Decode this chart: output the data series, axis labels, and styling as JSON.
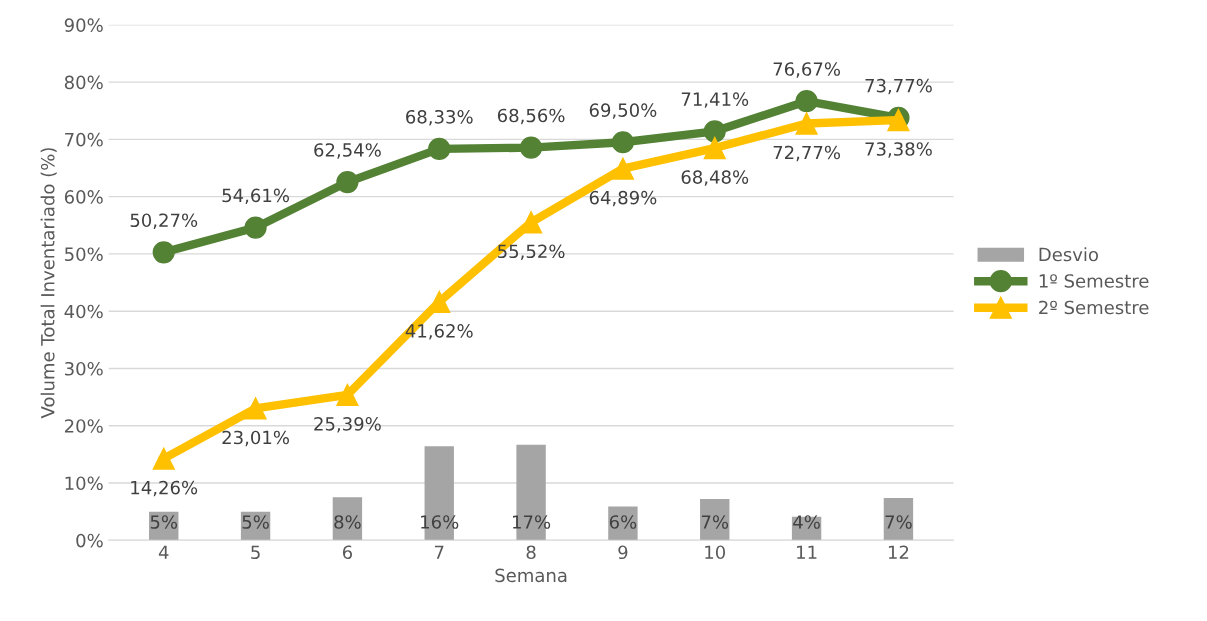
{
  "chart_data": {
    "type": "line",
    "xlabel": "Semana",
    "ylabel": "Volume Total Inventariado (%)",
    "categories": [
      "4",
      "5",
      "6",
      "7",
      "8",
      "9",
      "10",
      "11",
      "12"
    ],
    "series": [
      {
        "name": "Desvio",
        "type": "bar",
        "color": "#a5a5a5",
        "values": [
          5.0,
          5.0,
          7.5,
          16.4,
          16.7,
          5.9,
          7.2,
          4.1,
          7.4
        ],
        "value_labels": [
          "5%",
          "5%",
          "8%",
          "16%",
          "17%",
          "6%",
          "7%",
          "4%",
          "7%"
        ]
      },
      {
        "name": "1º Semestre",
        "color": "#548235",
        "marker": "circle",
        "values": [
          50.27,
          54.61,
          62.54,
          68.33,
          68.56,
          69.5,
          71.41,
          76.67,
          73.77
        ],
        "value_labels": [
          "50,27%",
          "54,61%",
          "62,54%",
          "68,33%",
          "68,56%",
          "69,50%",
          "71,41%",
          "76,67%",
          "73,77%"
        ]
      },
      {
        "name": "2º Semestre",
        "color": "#ffc000",
        "marker": "triangle",
        "values": [
          14.26,
          23.01,
          25.39,
          41.62,
          55.52,
          64.89,
          68.48,
          72.77,
          73.38
        ],
        "value_labels": [
          "14,26%",
          "23,01%",
          "25,39%",
          "41,62%",
          "55,52%",
          "64,89%",
          "68,48%",
          "72,77%",
          "73,38%"
        ]
      }
    ],
    "ylim": [
      0,
      90
    ],
    "yticks": [
      {
        "value": 0,
        "label": "0%"
      },
      {
        "value": 10,
        "label": "10%"
      },
      {
        "value": 20,
        "label": "20%"
      },
      {
        "value": 30,
        "label": "30%"
      },
      {
        "value": 40,
        "label": "40%"
      },
      {
        "value": 50,
        "label": "50%"
      },
      {
        "value": 60,
        "label": "60%"
      },
      {
        "value": 70,
        "label": "70%"
      },
      {
        "value": 80,
        "label": "80%"
      },
      {
        "value": 90,
        "label": "90%"
      }
    ],
    "grid": "y",
    "legend": "right",
    "line_style": "solid"
  }
}
